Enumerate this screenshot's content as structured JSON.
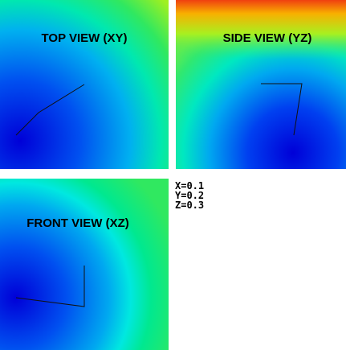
{
  "views": [
    {
      "title": "TOP VIEW (XY)"
    },
    {
      "title": "SIDE VIEW (YZ)"
    },
    {
      "title": "FRONT VIEW (XZ)"
    }
  ],
  "coords": [
    "X=0.1",
    "Y=0.2",
    "Z=0.3"
  ]
}
